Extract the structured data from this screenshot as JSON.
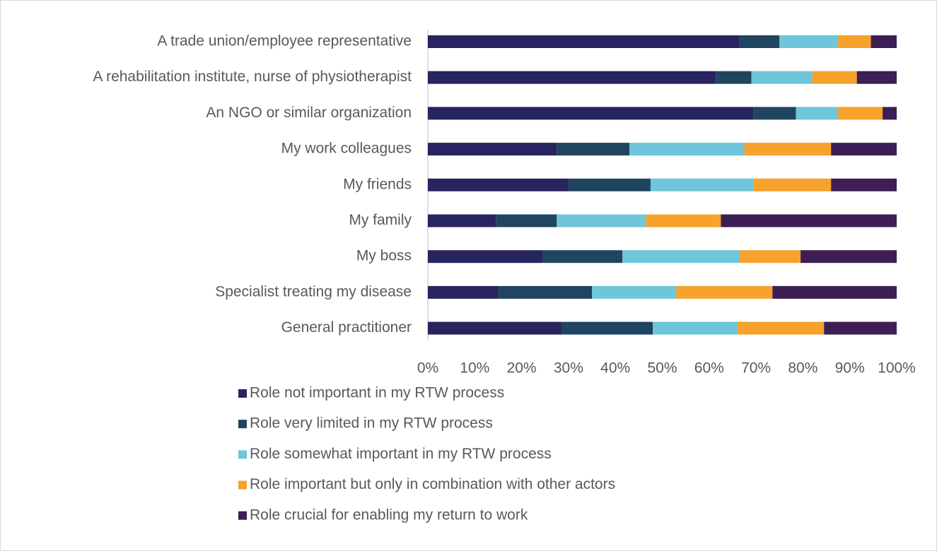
{
  "chart_data": {
    "type": "stacked-barh",
    "categories": [
      "A trade union/employee representative",
      "A rehabilitation institute, nurse of physiotherapist",
      "An NGO or similar organization",
      "My work colleagues",
      "My friends",
      "My family",
      "My boss",
      "Specialist treating my disease",
      "General practitioner"
    ],
    "series": [
      {
        "name": "Role not important in my RTW process",
        "color": "#28245f",
        "values": [
          66.5,
          61.5,
          69.5,
          27.5,
          30,
          14.5,
          24.5,
          15,
          28.5
        ]
      },
      {
        "name": "Role very limited in my RTW process",
        "color": "#1f4560",
        "values": [
          8.5,
          7.5,
          9,
          15.5,
          17.5,
          13,
          17,
          20,
          19.5
        ]
      },
      {
        "name": "Role somewhat important in my RTW process",
        "color": "#6fc5d9",
        "values": [
          12.5,
          13,
          9,
          24.5,
          22,
          19,
          25,
          18,
          18
        ]
      },
      {
        "name": "Role important but only in combination with other actors",
        "color": "#f6a22c",
        "values": [
          7,
          9.5,
          9.5,
          18.5,
          16.5,
          16,
          13,
          20.5,
          18.5
        ]
      },
      {
        "name": "Role crucial for enabling my return to work",
        "color": "#3d1e55",
        "values": [
          5.5,
          8.5,
          3,
          14,
          14,
          37.5,
          20.5,
          26.5,
          15.5
        ]
      }
    ],
    "xlim": [
      0,
      100
    ],
    "xticks": [
      {
        "value": 0,
        "label": "0%"
      },
      {
        "value": 10,
        "label": "10%"
      },
      {
        "value": 20,
        "label": "20%"
      },
      {
        "value": 30,
        "label": "30%"
      },
      {
        "value": 40,
        "label": "40%"
      },
      {
        "value": 50,
        "label": "50%"
      },
      {
        "value": 60,
        "label": "60%"
      },
      {
        "value": 70,
        "label": "70%"
      },
      {
        "value": 80,
        "label": "80%"
      },
      {
        "value": 90,
        "label": "90%"
      },
      {
        "value": 100,
        "label": "100%"
      }
    ],
    "legend": "bottom"
  }
}
